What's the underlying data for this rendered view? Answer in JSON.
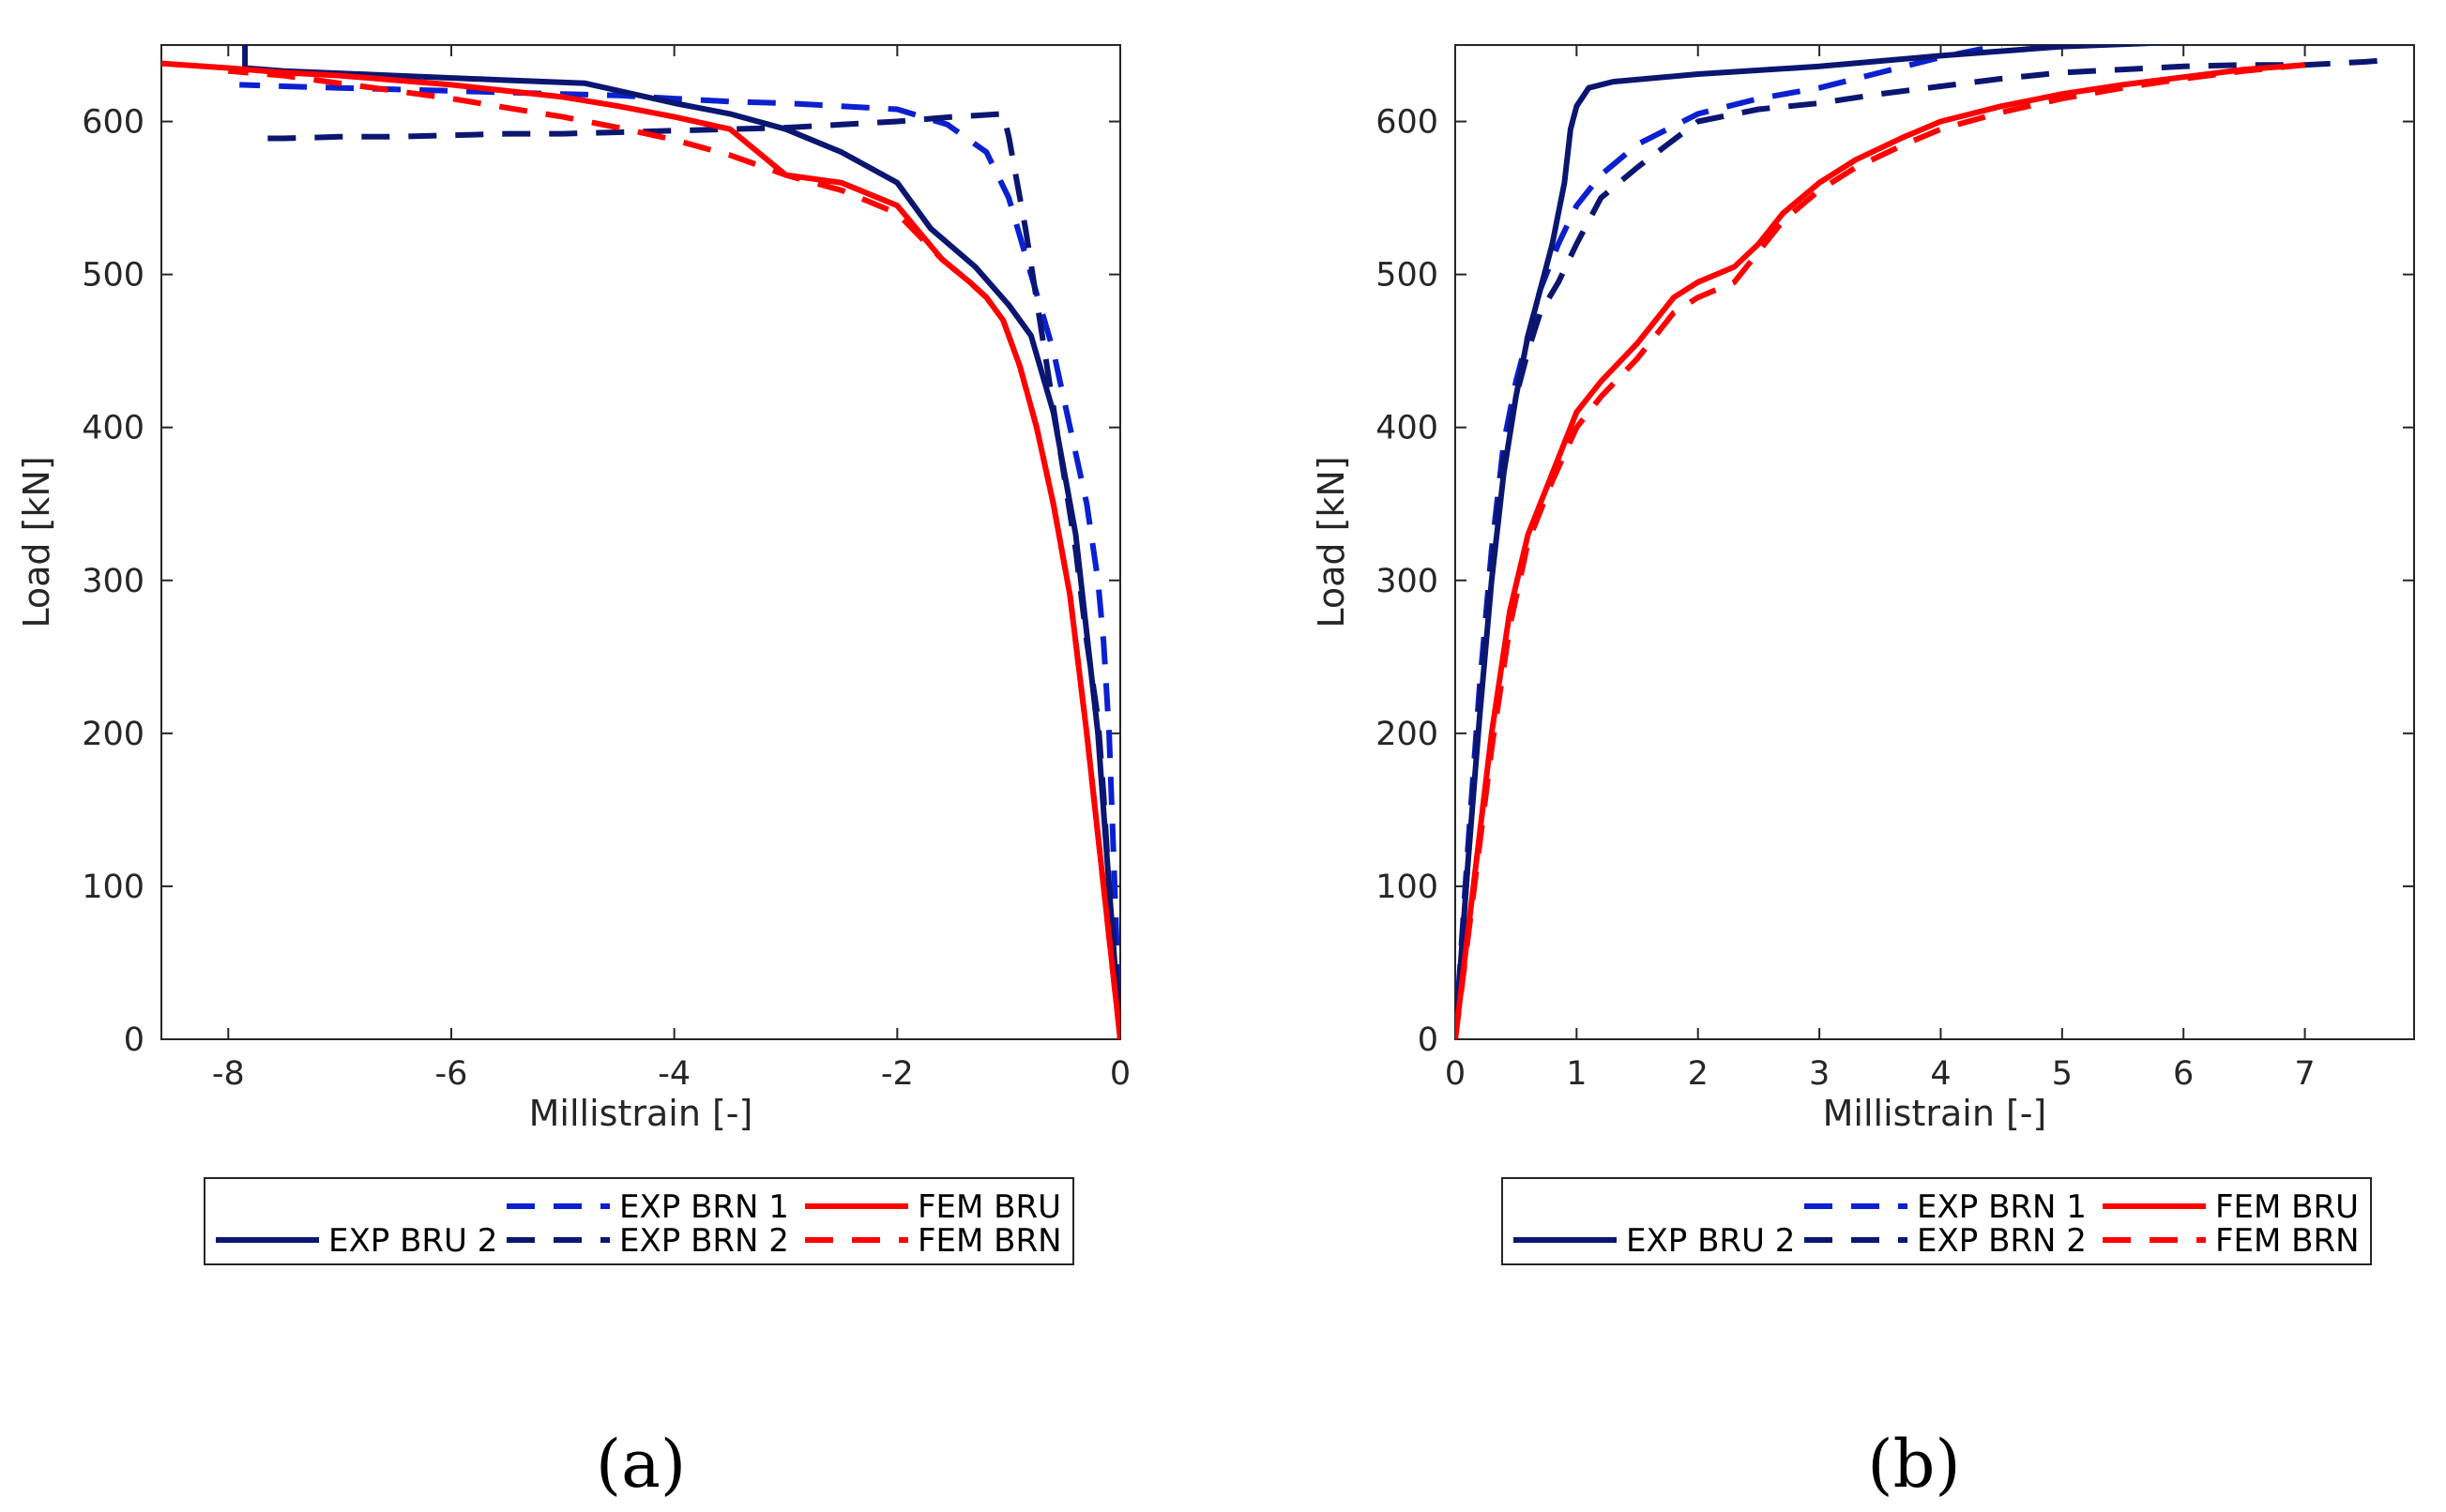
{
  "series_styles": {
    "EXP BRN 1": {
      "color": "#0b20d0",
      "dashed": true
    },
    "EXP BRN 2": {
      "color": "#0a1670",
      "dashed": true
    },
    "EXP BRU 2": {
      "color": "#0a1670",
      "dashed": false
    },
    "FEM BRU": {
      "color": "#ff0000",
      "dashed": false
    },
    "FEM BRN": {
      "color": "#ff0000",
      "dashed": true
    }
  },
  "chart_data": [
    {
      "type": "line",
      "panel_label": "(a)",
      "xlabel": "Millistrain [-]",
      "ylabel": "Load [kN]",
      "xlim": [
        -8.6,
        0
      ],
      "ylim": [
        0,
        650
      ],
      "xticks": [
        -8,
        -6,
        -4,
        -2,
        0
      ],
      "xtick_labels": [
        "-8",
        "-6",
        "-4",
        "-2",
        "0"
      ],
      "yticks": [
        0,
        100,
        200,
        300,
        400,
        500,
        600
      ],
      "ytick_labels": [
        "0",
        "100",
        "200",
        "300",
        "400",
        "500",
        "600"
      ],
      "legend": {
        "position": "below",
        "rows": [
          [
            "",
            "EXP BRN 1",
            "FEM BRU"
          ],
          [
            "EXP BRU 2",
            "EXP BRN 2",
            "FEM BRN"
          ]
        ]
      },
      "series": [
        {
          "name": "EXP BRN 1",
          "x": [
            0,
            -0.03,
            -0.06,
            -0.1,
            -0.15,
            -0.2,
            -0.3,
            -0.45,
            -0.6,
            -0.8,
            -1.0,
            -1.2,
            -1.55,
            -2.0,
            -2.5,
            -3.0,
            -3.5,
            -4.0,
            -4.5,
            -5.0,
            -5.5,
            -6.0,
            -6.5,
            -7.0,
            -7.5,
            -7.9
          ],
          "y": [
            0,
            60,
            120,
            200,
            260,
            300,
            350,
            400,
            450,
            500,
            550,
            580,
            598,
            608,
            610,
            612,
            613,
            615,
            617,
            618,
            619,
            620,
            621,
            622,
            623,
            624
          ]
        },
        {
          "name": "EXP BRN 2",
          "x": [
            0,
            -0.05,
            -0.1,
            -0.15,
            -0.2,
            -0.3,
            -0.4,
            -0.55,
            -0.7,
            -0.85,
            -1.0,
            -1.05,
            -1.5,
            -2.0,
            -2.5,
            -3.0,
            -3.5,
            -4.0,
            -4.5,
            -5.0,
            -5.5,
            -6.0,
            -6.5,
            -7.0,
            -7.5,
            -7.8
          ],
          "y": [
            0,
            60,
            100,
            160,
            210,
            260,
            320,
            390,
            460,
            530,
            590,
            605,
            603,
            600,
            598,
            596,
            595,
            594,
            593,
            592,
            592,
            591,
            590,
            590,
            589,
            589
          ]
        },
        {
          "name": "EXP BRU 2",
          "x": [
            0,
            -0.2,
            -0.4,
            -0.6,
            -0.8,
            -1.0,
            -1.3,
            -1.7,
            -2.0,
            -2.5,
            -3.0,
            -3.5,
            -4.0,
            -4.8,
            -5.5,
            -6.5,
            -7.5,
            -7.85,
            -7.85
          ],
          "y": [
            0,
            200,
            330,
            410,
            460,
            480,
            505,
            530,
            560,
            580,
            595,
            605,
            612,
            625,
            627,
            630,
            633,
            635,
            650
          ]
        },
        {
          "name": "FEM BRU",
          "x": [
            0,
            -0.15,
            -0.3,
            -0.45,
            -0.6,
            -0.75,
            -0.9,
            -1.05,
            -1.2,
            -1.35,
            -1.6,
            -2.0,
            -2.5,
            -3.0,
            -3.5,
            -4.0,
            -4.5,
            -5.0,
            -5.5,
            -6.0,
            -6.5,
            -7.0,
            -7.5,
            -8.0,
            -8.6
          ],
          "y": [
            0,
            100,
            200,
            290,
            350,
            400,
            440,
            470,
            485,
            495,
            510,
            545,
            560,
            565,
            595,
            603,
            610,
            616,
            620,
            624,
            627,
            630,
            632,
            635,
            638
          ]
        },
        {
          "name": "FEM BRN",
          "x": [
            0,
            -0.15,
            -0.3,
            -0.45,
            -0.6,
            -0.75,
            -0.9,
            -1.05,
            -1.2,
            -1.35,
            -1.6,
            -2.0,
            -2.5,
            -3.0,
            -3.5,
            -4.0,
            -4.5,
            -5.0,
            -5.5,
            -6.0,
            -6.5,
            -7.0,
            -7.5,
            -8.0
          ],
          "y": [
            0,
            100,
            200,
            290,
            350,
            400,
            440,
            470,
            485,
            495,
            510,
            540,
            555,
            565,
            578,
            588,
            596,
            603,
            609,
            615,
            620,
            625,
            630,
            633
          ]
        }
      ]
    },
    {
      "type": "line",
      "panel_label": "(b)",
      "xlabel": "Millistrain [-]",
      "ylabel": "Load [kN]",
      "xlim": [
        0,
        7.9
      ],
      "ylim": [
        0,
        650
      ],
      "xticks": [
        0,
        1,
        2,
        3,
        4,
        5,
        6,
        7
      ],
      "xtick_labels": [
        "0",
        "1",
        "2",
        "3",
        "4",
        "5",
        "6",
        "7"
      ],
      "yticks": [
        0,
        100,
        200,
        300,
        400,
        500,
        600
      ],
      "ytick_labels": [
        "0",
        "100",
        "200",
        "300",
        "400",
        "500",
        "600"
      ],
      "legend": {
        "position": "below",
        "rows": [
          [
            "",
            "EXP BRN 1",
            "FEM BRU"
          ],
          [
            "EXP BRU 2",
            "EXP BRN 2",
            "FEM BRN"
          ]
        ]
      },
      "series": [
        {
          "name": "EXP BRN 1",
          "x": [
            0,
            0.1,
            0.2,
            0.3,
            0.4,
            0.5,
            0.6,
            0.7,
            0.85,
            1.0,
            1.2,
            1.5,
            2.0,
            2.5,
            3.0,
            3.5,
            4.0,
            4.5
          ],
          "y": [
            0,
            120,
            230,
            320,
            390,
            430,
            460,
            490,
            520,
            545,
            565,
            585,
            605,
            615,
            622,
            632,
            642,
            650
          ]
        },
        {
          "name": "EXP BRN 2",
          "x": [
            0,
            0.1,
            0.2,
            0.3,
            0.4,
            0.5,
            0.6,
            0.7,
            0.85,
            1.0,
            1.2,
            1.5,
            2.0,
            2.5,
            3.0,
            3.5,
            4.0,
            4.5,
            5.0,
            5.5,
            6.0,
            6.5,
            7.0,
            7.5,
            7.65
          ],
          "y": [
            0,
            110,
            220,
            310,
            380,
            420,
            450,
            475,
            495,
            520,
            550,
            570,
            600,
            608,
            612,
            618,
            623,
            628,
            632,
            634,
            636,
            637,
            637,
            639,
            640
          ]
        },
        {
          "name": "EXP BRU 2",
          "x": [
            0,
            0.1,
            0.2,
            0.3,
            0.4,
            0.5,
            0.6,
            0.7,
            0.8,
            0.9,
            0.95,
            1.0,
            1.1,
            1.3,
            2.0,
            3.0,
            4.0,
            5.0,
            6.0,
            6.45
          ],
          "y": [
            0,
            110,
            210,
            300,
            370,
            420,
            460,
            490,
            520,
            560,
            595,
            610,
            622,
            626,
            631,
            636,
            643,
            649,
            652,
            653
          ]
        },
        {
          "name": "FEM BRU",
          "x": [
            0,
            0.15,
            0.3,
            0.45,
            0.6,
            0.8,
            1.0,
            1.2,
            1.5,
            1.8,
            2.0,
            2.3,
            2.5,
            2.7,
            3.0,
            3.3,
            3.7,
            4.0,
            4.5,
            5.0,
            5.5,
            6.0,
            6.5,
            7.0
          ],
          "y": [
            0,
            100,
            200,
            280,
            330,
            370,
            410,
            430,
            455,
            485,
            495,
            505,
            520,
            540,
            560,
            575,
            590,
            600,
            610,
            618,
            624,
            629,
            634,
            637
          ]
        },
        {
          "name": "FEM BRN",
          "x": [
            0,
            0.15,
            0.3,
            0.45,
            0.6,
            0.8,
            1.0,
            1.2,
            1.5,
            1.8,
            2.0,
            2.3,
            2.5,
            2.7,
            3.0,
            3.3,
            3.7,
            4.0,
            4.5,
            5.0,
            5.5,
            6.0,
            6.5,
            7.0
          ],
          "y": [
            0,
            95,
            190,
            270,
            325,
            365,
            400,
            420,
            445,
            475,
            485,
            495,
            515,
            535,
            555,
            570,
            585,
            595,
            606,
            615,
            622,
            628,
            633,
            637
          ]
        }
      ]
    }
  ]
}
